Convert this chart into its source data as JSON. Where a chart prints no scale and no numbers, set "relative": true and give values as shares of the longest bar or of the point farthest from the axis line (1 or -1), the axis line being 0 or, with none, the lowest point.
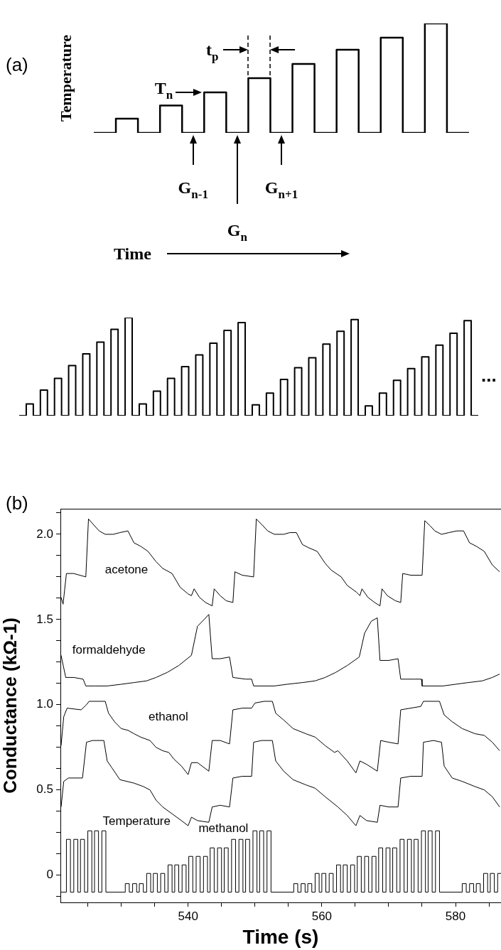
{
  "chart_data": [
    {
      "type": "step",
      "relative": true,
      "ylabel": "Temperature",
      "xlabel": "Time",
      "color": "#000000",
      "categories": [
        null,
        null,
        null,
        null,
        null,
        null,
        null,
        null,
        null,
        null,
        null,
        null,
        null,
        null,
        null,
        null,
        null,
        null
      ],
      "values": [
        0,
        0.13,
        0,
        0.25,
        0,
        0.37,
        0,
        0.5,
        0,
        0.63,
        0,
        0.76,
        0,
        0.87,
        0,
        1,
        0,
        0
      ],
      "annotations": [
        "(a)",
        "T$_{n}$",
        "t$_{p}$",
        "G$_{n-1}$",
        "G$_{n}$",
        "G$_{n+1}$"
      ]
    },
    {
      "type": "step",
      "relative": true,
      "color": "#000000",
      "categories": [
        null,
        null,
        null,
        null,
        null,
        null,
        null,
        null,
        null,
        null,
        null,
        null,
        null,
        null,
        null,
        null,
        null,
        null,
        null,
        null,
        null,
        null,
        null,
        null,
        null,
        null,
        null,
        null,
        null,
        null,
        null,
        null,
        null,
        null,
        null,
        null,
        null,
        null,
        null,
        null,
        null,
        null,
        null,
        null,
        null,
        null,
        null,
        null,
        null,
        null,
        null,
        null,
        null,
        null,
        null,
        null,
        null,
        null,
        null,
        null,
        null,
        null,
        null,
        null,
        null,
        null
      ],
      "values": [
        0,
        0.12,
        0,
        0.26,
        0,
        0.38,
        0,
        0.51,
        0,
        0.63,
        0,
        0.75,
        0,
        0.88,
        0,
        1,
        0,
        0.12,
        0,
        0.25,
        0,
        0.38,
        0,
        0.5,
        0,
        0.62,
        0,
        0.74,
        0,
        0.87,
        0,
        0.95,
        0,
        0.11,
        0,
        0.23,
        0,
        0.37,
        0,
        0.49,
        0,
        0.59,
        0,
        0.73,
        0,
        0.86,
        0,
        0.98,
        0,
        0.1,
        0,
        0.23,
        0,
        0.36,
        0,
        0.48,
        0,
        0.6,
        0,
        0.72,
        0,
        0.84,
        0,
        0.97,
        0,
        0
      ],
      "annotations": [
        "..."
      ]
    },
    {
      "type": "line",
      "xlabel": "Time (s)",
      "ylabel": "Conductance (kΩ-1)",
      "xlim": [
        520.9,
        586.8
      ],
      "xticks": [
        {
          "value": 525,
          "label": null
        },
        {
          "value": 530,
          "label": null
        },
        {
          "value": 535,
          "label": null
        },
        540,
        {
          "value": 545,
          "label": null
        },
        {
          "value": 550,
          "label": null
        },
        {
          "value": 555,
          "label": null
        },
        560,
        {
          "value": 565,
          "label": null
        },
        {
          "value": 570,
          "label": null
        },
        {
          "value": 575,
          "label": null
        },
        580,
        {
          "value": 585,
          "label": null
        }
      ],
      "ylim": [
        -0.16,
        2.15
      ],
      "yticks": [
        {
          "value": -0.125,
          "label": null
        },
        0,
        {
          "value": 0.125,
          "label": null
        },
        {
          "value": 0.25,
          "label": null
        },
        {
          "value": 0.375,
          "label": null
        },
        0.5,
        {
          "value": 0.625,
          "label": null
        },
        {
          "value": 0.75,
          "label": null
        },
        {
          "value": 0.875,
          "label": null
        },
        {
          "value": 1,
          "label": "1.0"
        },
        {
          "value": 1.125,
          "label": null
        },
        {
          "value": 1.25,
          "label": null
        },
        {
          "value": 1.375,
          "label": null
        },
        1.5,
        {
          "value": 1.625,
          "label": null
        },
        {
          "value": 1.75,
          "label": null
        },
        {
          "value": 1.875,
          "label": null
        },
        {
          "value": 2,
          "label": "2.0"
        },
        {
          "value": 2.125,
          "label": null
        }
      ],
      "annotations": [
        "(b)"
      ],
      "series": [
        {
          "name": "acetone",
          "color": "#000000",
          "x": [
            521.0,
            521.3,
            521.8,
            522.9,
            524.7,
            525.1,
            526.0,
            526.7,
            527.6,
            528.8,
            529.8,
            531.0,
            531.9,
            532.9,
            534.0,
            535.2,
            536.2,
            537.6,
            538.8,
            540.0,
            540.5,
            540.9,
            541.7,
            542.6,
            543.6,
            543.9,
            544.8,
            545.7,
            546.7,
            547.0,
            548.1,
            549.8,
            550.2,
            551.2,
            551.9,
            552.9,
            554.3,
            555.2,
            556.2,
            557.1,
            558.1,
            559.3,
            560.5,
            561.4,
            562.9,
            563.8,
            565.2,
            565.7,
            566.0,
            566.9,
            567.9,
            568.7,
            569.0,
            569.8,
            571.0,
            571.8,
            572.1,
            573.3,
            575.0,
            575.4,
            576.2,
            576.9,
            577.9,
            579.0,
            580.2,
            581.2,
            582.1,
            583.1,
            584.3,
            585.5,
            586.6
          ],
          "values": [
            1.63,
            1.59,
            1.77,
            1.77,
            1.75,
            2.09,
            2.05,
            2.02,
            2.0,
            2.0,
            2.01,
            2.02,
            1.95,
            1.93,
            1.9,
            1.84,
            1.8,
            1.77,
            1.69,
            1.65,
            1.64,
            1.68,
            1.63,
            1.6,
            1.58,
            1.68,
            1.64,
            1.61,
            1.6,
            1.78,
            1.76,
            1.75,
            2.09,
            2.05,
            2.02,
            2.0,
            2.0,
            2.01,
            2.01,
            1.94,
            1.92,
            1.9,
            1.83,
            1.79,
            1.75,
            1.7,
            1.66,
            1.64,
            1.68,
            1.63,
            1.6,
            1.58,
            1.68,
            1.64,
            1.61,
            1.6,
            1.77,
            1.76,
            1.76,
            2.08,
            2.05,
            2.02,
            2.0,
            2.01,
            2.02,
            2.02,
            1.95,
            1.93,
            1.9,
            1.82,
            1.78
          ]
        },
        {
          "name": "formaldehyde",
          "color": "#000000",
          "x": [
            521.0,
            521.7,
            522.9,
            524.3,
            524.7,
            526.2,
            527.9,
            530.0,
            531.9,
            533.8,
            535.2,
            536.9,
            538.6,
            540.5,
            541.4,
            542.4,
            543.1,
            543.6,
            544.8,
            546.2,
            546.7,
            548.6,
            549.5,
            549.8,
            551.4,
            552.9,
            554.8,
            557.1,
            559.0,
            560.5,
            562.1,
            563.8,
            565.6,
            566.4,
            567.4,
            568.3,
            568.7,
            570.0,
            571.4,
            571.8,
            573.8,
            574.9,
            575.0,
            576.7,
            578.1,
            580.0,
            581.9,
            584.0,
            585.5,
            586.6
          ],
          "values": [
            1.29,
            1.16,
            1.16,
            1.15,
            1.11,
            1.11,
            1.11,
            1.12,
            1.13,
            1.14,
            1.16,
            1.19,
            1.23,
            1.29,
            1.46,
            1.5,
            1.53,
            1.27,
            1.27,
            1.28,
            1.16,
            1.15,
            1.15,
            1.11,
            1.11,
            1.11,
            1.12,
            1.13,
            1.14,
            1.16,
            1.19,
            1.23,
            1.28,
            1.42,
            1.49,
            1.51,
            1.26,
            1.26,
            1.27,
            1.15,
            1.15,
            1.15,
            1.11,
            1.11,
            1.11,
            1.12,
            1.13,
            1.14,
            1.16,
            1.18
          ]
        },
        {
          "name": "ethanol",
          "color": "#000000",
          "x": [
            521.0,
            521.4,
            521.9,
            524.0,
            524.8,
            525.2,
            527.6,
            528.1,
            529.0,
            530.0,
            531.0,
            531.9,
            532.9,
            534.3,
            535.2,
            536.2,
            537.1,
            537.9,
            539.0,
            540.0,
            540.5,
            541.4,
            543.1,
            543.6,
            544.8,
            546.2,
            546.7,
            548.1,
            549.5,
            550.0,
            551.4,
            552.6,
            553.1,
            554.3,
            555.7,
            557.6,
            559.0,
            560.5,
            561.9,
            562.4,
            563.8,
            565.1,
            565.7,
            566.7,
            568.3,
            568.8,
            570.0,
            571.4,
            571.8,
            573.3,
            574.8,
            575.2,
            577.6,
            578.3,
            579.5,
            581.0,
            582.9,
            584.3,
            585.5,
            586.6
          ],
          "values": [
            0.76,
            0.93,
            0.98,
            0.97,
            1.0,
            1.02,
            1.02,
            0.95,
            0.9,
            0.86,
            0.85,
            0.83,
            0.81,
            0.79,
            0.75,
            0.73,
            0.72,
            0.68,
            0.64,
            0.59,
            0.66,
            0.66,
            0.61,
            0.79,
            0.79,
            0.77,
            0.97,
            0.98,
            0.98,
            1.01,
            1.02,
            1.02,
            0.95,
            0.91,
            0.86,
            0.83,
            0.81,
            0.76,
            0.72,
            0.73,
            0.67,
            0.6,
            0.67,
            0.65,
            0.61,
            0.79,
            0.78,
            0.77,
            0.97,
            0.98,
            0.99,
            1.02,
            1.02,
            0.94,
            0.9,
            0.86,
            0.83,
            0.82,
            0.78,
            0.73
          ]
        },
        {
          "name": "methanol",
          "color": "#000000",
          "x": [
            521.0,
            521.4,
            522.1,
            524.2,
            524.8,
            525.7,
            527.4,
            527.9,
            528.6,
            529.8,
            531.9,
            533.3,
            534.3,
            535.2,
            536.2,
            537.6,
            539.0,
            540.0,
            540.5,
            541.4,
            543.1,
            543.6,
            544.8,
            546.2,
            546.7,
            548.1,
            549.5,
            549.8,
            551.0,
            552.6,
            553.1,
            554.3,
            555.7,
            557.6,
            559.0,
            560.5,
            562.4,
            563.8,
            565.1,
            565.7,
            566.7,
            568.3,
            568.7,
            570.0,
            571.4,
            571.8,
            573.3,
            575.0,
            575.2,
            576.7,
            577.9,
            578.3,
            579.5,
            581.0,
            582.9,
            584.3,
            585.5,
            586.6
          ],
          "values": [
            0.4,
            0.55,
            0.57,
            0.57,
            0.78,
            0.79,
            0.79,
            0.67,
            0.63,
            0.56,
            0.54,
            0.52,
            0.5,
            0.44,
            0.4,
            0.36,
            0.32,
            0.29,
            0.34,
            0.32,
            0.31,
            0.4,
            0.41,
            0.4,
            0.57,
            0.58,
            0.58,
            0.78,
            0.79,
            0.79,
            0.67,
            0.61,
            0.56,
            0.53,
            0.51,
            0.46,
            0.4,
            0.35,
            0.29,
            0.35,
            0.32,
            0.31,
            0.41,
            0.4,
            0.4,
            0.57,
            0.58,
            0.58,
            0.78,
            0.79,
            0.78,
            0.64,
            0.57,
            0.55,
            0.52,
            0.5,
            0.46,
            0.4
          ]
        },
        {
          "name": "Temperature",
          "type": "step",
          "color": "#000000",
          "x": [
            520.9,
            521.8,
            522.4,
            522.9,
            523.5,
            523.9,
            524.5,
            525.0,
            525.6,
            526.0,
            526.6,
            527.1,
            527.7,
            530.6,
            531.2,
            531.7,
            532.3,
            532.7,
            533.3,
            533.8,
            534.4,
            534.8,
            535.4,
            535.9,
            536.5,
            537.0,
            537.6,
            538.0,
            538.6,
            539.1,
            539.7,
            540.1,
            540.7,
            541.2,
            541.8,
            542.3,
            542.9,
            543.3,
            543.9,
            544.4,
            545.0,
            545.4,
            546.0,
            546.5,
            547.1,
            547.6,
            548.2,
            548.6,
            549.2,
            549.7,
            550.3,
            550.7,
            551.3,
            551.8,
            552.4,
            555.8,
            556.4,
            556.9,
            557.5,
            557.9,
            558.5,
            559.0,
            559.6,
            560.0,
            560.6,
            561.1,
            561.7,
            562.2,
            562.8,
            563.2,
            563.8,
            564.3,
            564.9,
            565.3,
            565.9,
            566.4,
            567.0,
            567.5,
            568.1,
            568.5,
            569.1,
            569.6,
            570.2,
            570.6,
            571.2,
            571.7,
            572.3,
            572.8,
            573.4,
            573.8,
            574.4,
            574.9,
            575.5,
            575.9,
            576.5,
            577.0,
            577.6,
            581.0,
            581.6,
            582.1,
            582.7,
            583.1,
            583.7,
            584.2,
            584.8,
            585.2,
            585.8,
            586.3,
            586.8
          ],
          "values": [
            -0.1,
            0.21,
            -0.1,
            0.21,
            -0.1,
            0.21,
            -0.1,
            0.26,
            -0.1,
            0.26,
            -0.1,
            0.26,
            -0.1,
            -0.05,
            -0.1,
            -0.05,
            -0.1,
            -0.05,
            -0.1,
            0.01,
            -0.1,
            0.01,
            -0.1,
            0.01,
            -0.1,
            0.06,
            -0.1,
            0.06,
            -0.1,
            0.06,
            -0.1,
            0.11,
            -0.1,
            0.11,
            -0.1,
            0.11,
            -0.1,
            0.16,
            -0.1,
            0.16,
            -0.1,
            0.16,
            -0.1,
            0.21,
            -0.1,
            0.21,
            -0.1,
            0.21,
            -0.1,
            0.26,
            -0.1,
            0.26,
            -0.1,
            0.26,
            -0.1,
            -0.05,
            -0.1,
            -0.05,
            -0.1,
            -0.05,
            -0.1,
            0.01,
            -0.1,
            0.01,
            -0.1,
            0.01,
            -0.1,
            0.06,
            -0.1,
            0.06,
            -0.1,
            0.06,
            -0.1,
            0.11,
            -0.1,
            0.11,
            -0.1,
            0.11,
            -0.1,
            0.16,
            -0.1,
            0.16,
            -0.1,
            0.16,
            -0.1,
            0.21,
            -0.1,
            0.21,
            -0.1,
            0.21,
            -0.1,
            0.26,
            -0.1,
            0.26,
            -0.1,
            0.26,
            -0.1,
            -0.05,
            -0.1,
            -0.05,
            -0.1,
            -0.05,
            -0.1,
            0.01,
            -0.1,
            0.01,
            -0.1,
            0.01,
            0.01
          ]
        }
      ]
    }
  ]
}
